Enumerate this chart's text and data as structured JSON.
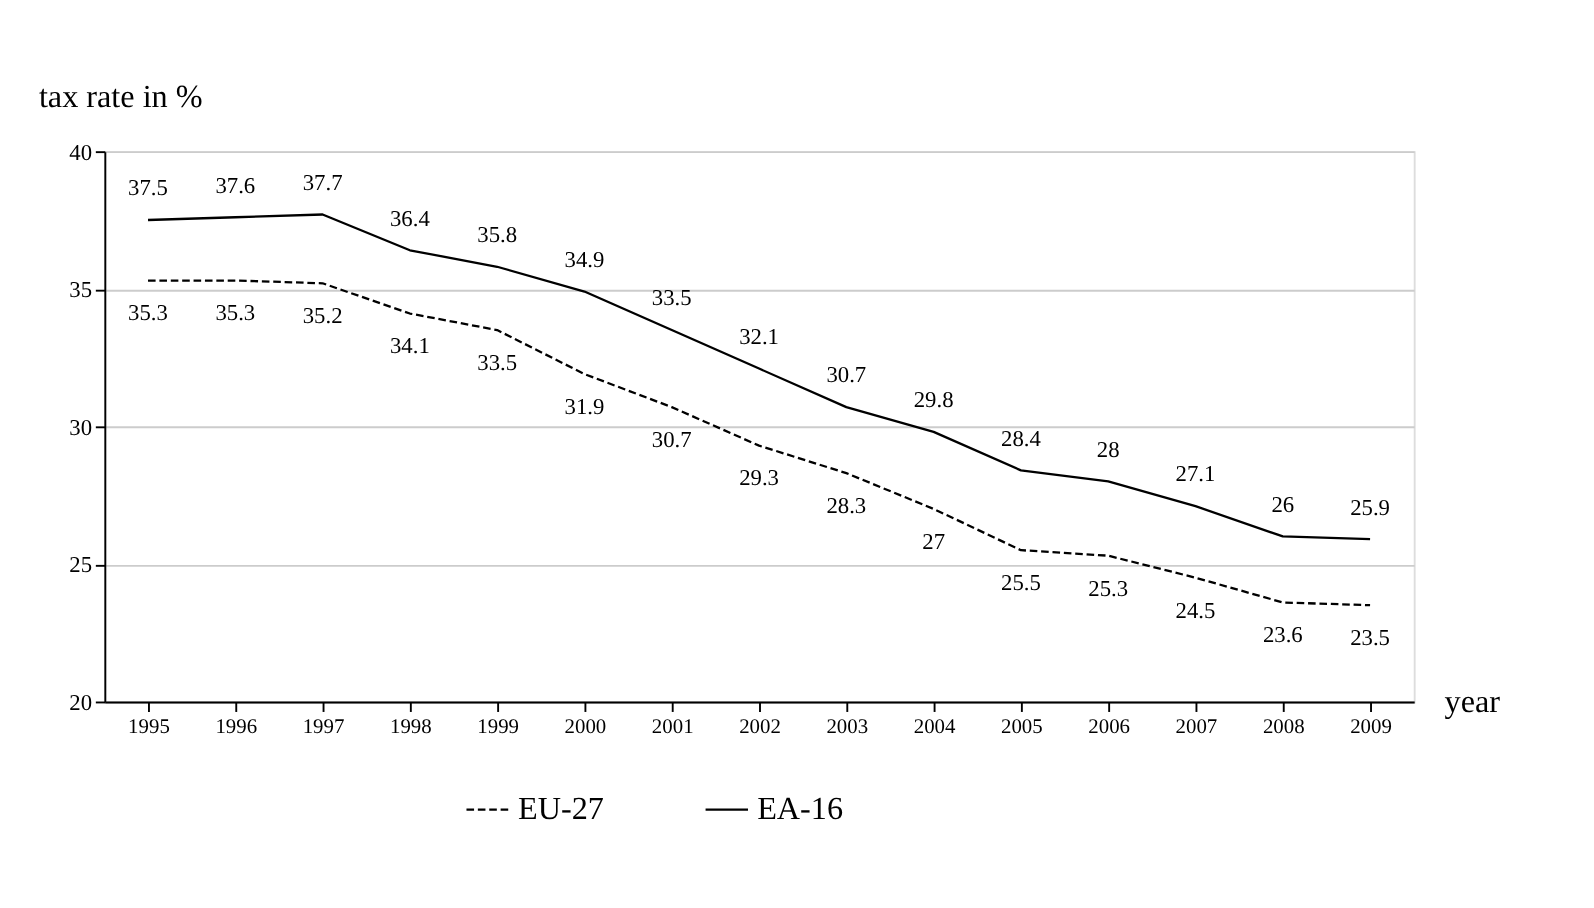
{
  "chart_data": {
    "type": "line",
    "xlabel": "year",
    "ylabel": "tax rate in %",
    "categories": [
      "1995",
      "1996",
      "1997",
      "1998",
      "1999",
      "2000",
      "2001",
      "2002",
      "2003",
      "2004",
      "2005",
      "2006",
      "2007",
      "2008",
      "2009"
    ],
    "series": [
      {
        "name": "EU-27",
        "color": "#000000",
        "line_style": "dashed",
        "values": [
          35.3,
          35.3,
          35.2,
          34.1,
          33.5,
          31.9,
          30.7,
          29.3,
          28.3,
          27,
          25.5,
          25.3,
          24.5,
          23.6,
          23.5
        ]
      },
      {
        "name": "EA-16",
        "color": "#000000",
        "line_style": "solid",
        "values": [
          37.5,
          37.6,
          37.7,
          36.4,
          35.8,
          34.9,
          33.5,
          32.1,
          30.7,
          29.8,
          28.4,
          28,
          27.1,
          26,
          25.9
        ]
      }
    ],
    "ylim": [
      20,
      40
    ],
    "yticks": [
      20,
      25,
      30,
      35,
      40
    ],
    "grid": "y",
    "legend": "bottom",
    "data_labels": true,
    "marker": "none"
  }
}
